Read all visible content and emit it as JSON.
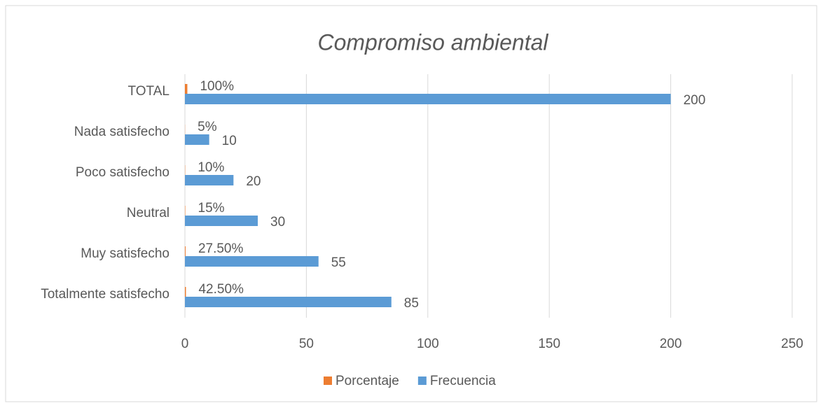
{
  "chart_data": {
    "type": "bar",
    "orientation": "horizontal",
    "title": "Compromiso ambiental",
    "categories": [
      "TOTAL",
      "Nada satisfecho",
      "Poco satisfecho",
      "Neutral",
      "Muy satisfecho",
      "Totalmente satisfecho"
    ],
    "series": [
      {
        "name": "Porcentaje",
        "color": "#ed7d31",
        "values": [
          1,
          0.05,
          0.1,
          0.15,
          0.275,
          0.425
        ],
        "value_labels": [
          "100%",
          "5%",
          "10%",
          "15%",
          "27.50%",
          "42.50%"
        ]
      },
      {
        "name": "Frecuencia",
        "color": "#5b9bd5",
        "values": [
          200,
          10,
          20,
          30,
          55,
          85
        ]
      }
    ],
    "xlim": [
      0,
      250
    ],
    "xticks": [
      0,
      50,
      100,
      150,
      200,
      250
    ],
    "grid": true,
    "legend": "bottom"
  }
}
